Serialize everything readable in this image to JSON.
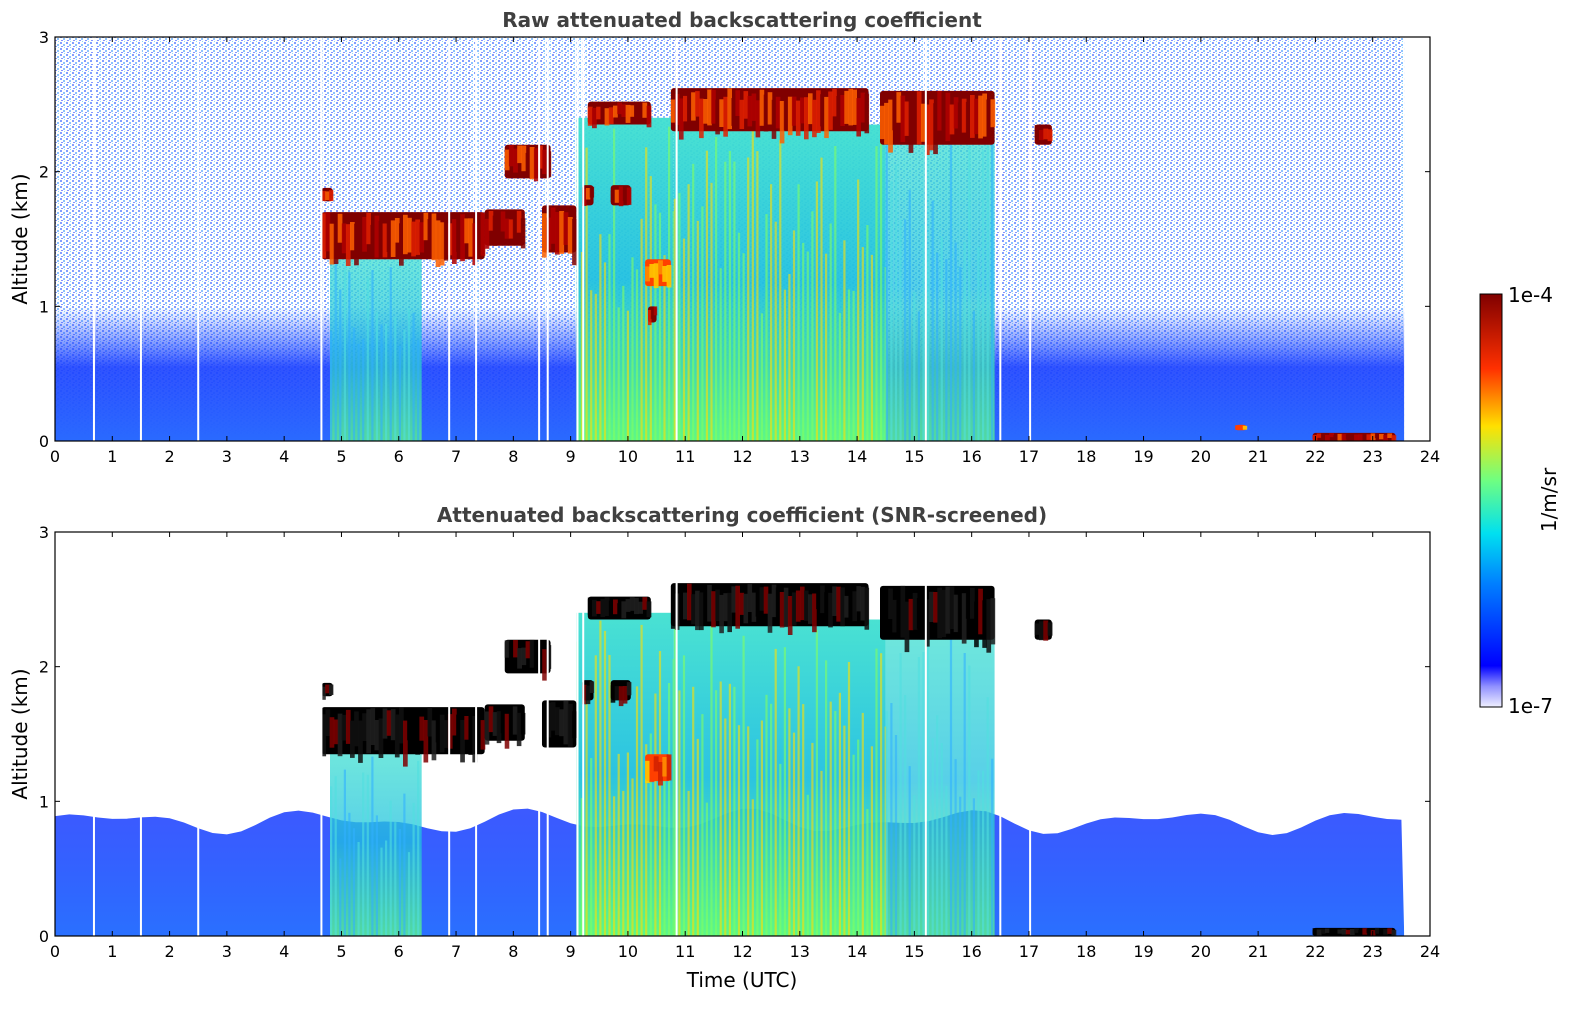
{
  "chart_data": [
    {
      "type": "heatmap",
      "title": "Raw attenuated backscattering coefficient",
      "xlabel": "",
      "ylabel": "Altitude (km)",
      "xlim": [
        0,
        24
      ],
      "ylim": [
        0,
        3
      ],
      "xticks": [
        "0",
        "1",
        "2",
        "3",
        "4",
        "5",
        "6",
        "7",
        "8",
        "9",
        "10",
        "11",
        "12",
        "13",
        "14",
        "15",
        "16",
        "17",
        "18",
        "19",
        "20",
        "21",
        "22",
        "23",
        "24"
      ],
      "yticks": [
        "0",
        "1",
        "2",
        "3"
      ],
      "x_data_end": 23.55,
      "cloud_layers": [
        {
          "x": [
            4.65,
            4.85
          ],
          "y": [
            1.78,
            1.88
          ],
          "intensity": "high"
        },
        {
          "x": [
            4.65,
            7.5
          ],
          "y": [
            1.35,
            1.7
          ],
          "intensity": "high"
        },
        {
          "x": [
            7.5,
            8.2
          ],
          "y": [
            1.45,
            1.72
          ],
          "intensity": "high"
        },
        {
          "x": [
            7.85,
            8.65
          ],
          "y": [
            1.95,
            2.2
          ],
          "intensity": "high"
        },
        {
          "x": [
            8.5,
            9.1
          ],
          "y": [
            1.4,
            1.75
          ],
          "intensity": "high"
        },
        {
          "x": [
            9.2,
            9.4
          ],
          "y": [
            1.75,
            1.9
          ],
          "intensity": "high"
        },
        {
          "x": [
            9.7,
            10.05
          ],
          "y": [
            1.75,
            1.9
          ],
          "intensity": "high"
        },
        {
          "x": [
            9.3,
            10.4
          ],
          "y": [
            2.35,
            2.52
          ],
          "intensity": "high"
        },
        {
          "x": [
            10.75,
            14.2
          ],
          "y": [
            2.3,
            2.62
          ],
          "intensity": "high"
        },
        {
          "x": [
            14.4,
            16.4
          ],
          "y": [
            2.2,
            2.6
          ],
          "intensity": "high"
        },
        {
          "x": [
            17.1,
            17.4
          ],
          "y": [
            2.2,
            2.35
          ],
          "intensity": "high"
        },
        {
          "x": [
            10.3,
            10.75
          ],
          "y": [
            1.15,
            1.35
          ],
          "intensity": "medium"
        },
        {
          "x": [
            10.35,
            10.5
          ],
          "y": [
            0.88,
            1.0
          ],
          "intensity": "high"
        },
        {
          "x": [
            20.6,
            20.8
          ],
          "y": [
            0.08,
            0.12
          ],
          "intensity": "medium"
        },
        {
          "x": [
            21.95,
            23.4
          ],
          "y": [
            0.0,
            0.06
          ],
          "intensity": "high"
        }
      ],
      "precipitation_columns": [
        {
          "x": [
            4.8,
            6.4
          ],
          "y_top": 1.4,
          "intensity": "low"
        },
        {
          "x": [
            9.1,
            10.8
          ],
          "y_top": 2.4,
          "intensity": "medium"
        },
        {
          "x": [
            10.8,
            14.5
          ],
          "y_top": 2.35,
          "intensity": "medium"
        },
        {
          "x": [
            14.5,
            16.4
          ],
          "y_top": 2.3,
          "intensity": "low"
        }
      ],
      "data_gaps": [
        0.68,
        1.5,
        2.5,
        4.65,
        6.88,
        7.35,
        8.45,
        8.6,
        9.12,
        9.22,
        10.85,
        15.2,
        16.5,
        17.02
      ]
    },
    {
      "type": "heatmap",
      "title": "Attenuated backscattering coefficient (SNR-screened)",
      "xlabel": "Time (UTC)",
      "ylabel": "Altitude (km)",
      "xlim": [
        0,
        24
      ],
      "ylim": [
        0,
        3
      ],
      "xticks": [
        "0",
        "1",
        "2",
        "3",
        "4",
        "5",
        "6",
        "7",
        "8",
        "9",
        "10",
        "11",
        "12",
        "13",
        "14",
        "15",
        "16",
        "17",
        "18",
        "19",
        "20",
        "21",
        "22",
        "23",
        "24"
      ],
      "yticks": [
        "0",
        "1",
        "2",
        "3"
      ],
      "x_data_end": 23.55,
      "boundary_layer_top_km": 0.85,
      "cloud_layers": [
        {
          "x": [
            4.65,
            4.85
          ],
          "y": [
            1.78,
            1.88
          ],
          "intensity": "saturated"
        },
        {
          "x": [
            4.65,
            7.5
          ],
          "y": [
            1.35,
            1.7
          ],
          "intensity": "saturated"
        },
        {
          "x": [
            7.5,
            8.2
          ],
          "y": [
            1.45,
            1.72
          ],
          "intensity": "saturated"
        },
        {
          "x": [
            7.85,
            8.65
          ],
          "y": [
            1.95,
            2.2
          ],
          "intensity": "saturated"
        },
        {
          "x": [
            8.5,
            9.1
          ],
          "y": [
            1.4,
            1.75
          ],
          "intensity": "saturated"
        },
        {
          "x": [
            9.2,
            9.4
          ],
          "y": [
            1.75,
            1.9
          ],
          "intensity": "saturated"
        },
        {
          "x": [
            9.7,
            10.05
          ],
          "y": [
            1.75,
            1.9
          ],
          "intensity": "saturated"
        },
        {
          "x": [
            9.3,
            10.4
          ],
          "y": [
            2.35,
            2.52
          ],
          "intensity": "saturated"
        },
        {
          "x": [
            10.75,
            14.2
          ],
          "y": [
            2.3,
            2.62
          ],
          "intensity": "saturated"
        },
        {
          "x": [
            14.4,
            16.4
          ],
          "y": [
            2.2,
            2.6
          ],
          "intensity": "saturated"
        },
        {
          "x": [
            17.1,
            17.4
          ],
          "y": [
            2.2,
            2.35
          ],
          "intensity": "saturated"
        },
        {
          "x": [
            10.3,
            10.75
          ],
          "y": [
            1.15,
            1.35
          ],
          "intensity": "medium"
        },
        {
          "x": [
            21.95,
            23.4
          ],
          "y": [
            0.0,
            0.06
          ],
          "intensity": "saturated"
        }
      ],
      "precipitation_columns": [
        {
          "x": [
            4.8,
            6.4
          ],
          "y_top": 1.4,
          "intensity": "low"
        },
        {
          "x": [
            9.1,
            10.8
          ],
          "y_top": 2.4,
          "intensity": "medium"
        },
        {
          "x": [
            10.8,
            14.5
          ],
          "y_top": 2.35,
          "intensity": "medium"
        },
        {
          "x": [
            14.5,
            16.4
          ],
          "y_top": 2.3,
          "intensity": "low"
        }
      ],
      "data_gaps": [
        0.68,
        1.5,
        2.5,
        4.65,
        6.88,
        7.35,
        8.45,
        8.6,
        9.12,
        9.22,
        10.85,
        15.2,
        16.5,
        17.02
      ]
    }
  ],
  "colorbar": {
    "label": "1/m/sr",
    "min_label": "1e-7",
    "max_label": "1e-4",
    "colormap": "jet"
  },
  "colors": {
    "boundary_layer": "#1a3cff",
    "noise": "#2a5cff",
    "saturated": "#000000",
    "cloud_core": "#8b0000"
  }
}
